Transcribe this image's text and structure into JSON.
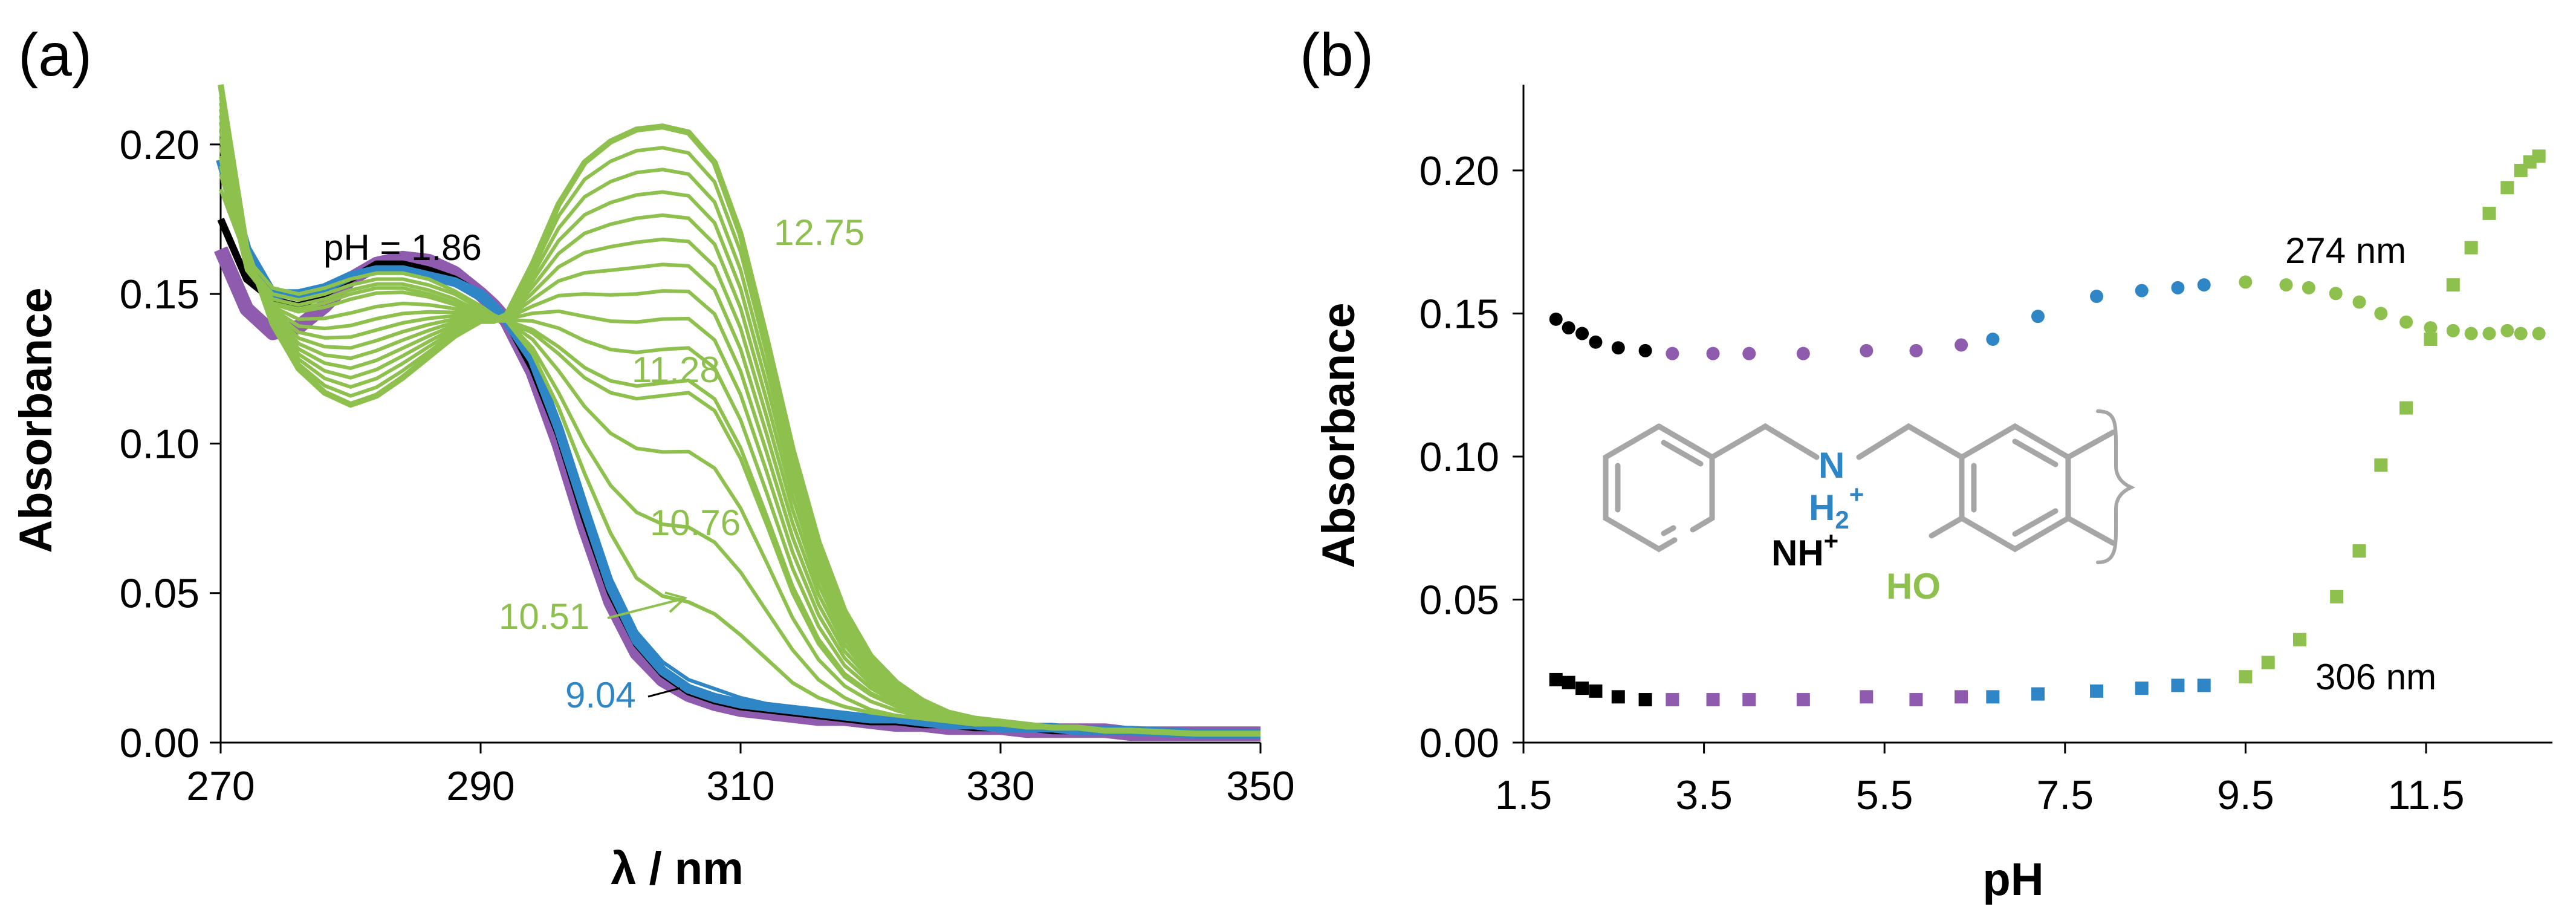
{
  "colors": {
    "black": "#000000",
    "purple": "#8E5BAE",
    "blue": "#2F86C6",
    "green": "#8DC04C",
    "gray": "#A6A6A6"
  },
  "chart_data": [
    {
      "type": "line",
      "panel_label": "(a)",
      "xlabel": "λ / nm",
      "ylabel": "Absorbance",
      "xlim": [
        270,
        350
      ],
      "ylim": [
        0.0,
        0.22
      ],
      "xticks": [
        "270",
        "290",
        "310",
        "330",
        "350"
      ],
      "yticks": [
        "0.00",
        "0.05",
        "0.10",
        "0.15",
        "0.20"
      ],
      "annotations": [
        {
          "text": "pH = 1.86",
          "color": "black"
        },
        {
          "text": "12.75",
          "color": "green"
        },
        {
          "text": "11.28",
          "color": "green"
        },
        {
          "text": "10.76",
          "color": "green"
        },
        {
          "text": "10.51",
          "color": "green"
        },
        {
          "text": "9.04",
          "color": "blue"
        }
      ],
      "template_x": [
        270,
        272,
        274,
        276,
        278,
        280,
        282,
        284,
        286,
        288,
        290,
        291,
        292,
        294,
        296,
        298,
        300,
        302,
        304,
        306,
        308,
        310,
        312,
        314,
        316,
        318,
        320,
        322,
        324,
        326,
        328,
        330,
        332,
        334,
        336,
        338,
        340,
        345,
        350
      ],
      "series": [
        {
          "name": "black group",
          "color": "black",
          "values": [
            0.175,
            0.155,
            0.148,
            0.146,
            0.15,
            0.155,
            0.16,
            0.16,
            0.158,
            0.155,
            0.15,
            0.146,
            0.141,
            0.125,
            0.103,
            0.075,
            0.05,
            0.033,
            0.023,
            0.017,
            0.014,
            0.012,
            0.011,
            0.01,
            0.009,
            0.008,
            0.007,
            0.007,
            0.006,
            0.006,
            0.005,
            0.005,
            0.005,
            0.004,
            0.004,
            0.004,
            0.004,
            0.003,
            0.003
          ]
        },
        {
          "name": "purple group",
          "color": "purple",
          "values": [
            0.165,
            0.145,
            0.137,
            0.139,
            0.146,
            0.155,
            0.16,
            0.162,
            0.161,
            0.157,
            0.15,
            0.146,
            0.141,
            0.124,
            0.1,
            0.072,
            0.047,
            0.03,
            0.021,
            0.016,
            0.013,
            0.011,
            0.01,
            0.009,
            0.008,
            0.008,
            0.007,
            0.006,
            0.006,
            0.005,
            0.005,
            0.005,
            0.004,
            0.004,
            0.004,
            0.004,
            0.003,
            0.003,
            0.003
          ]
        },
        {
          "name": "blue group",
          "color": "blue",
          "values": [
            0.195,
            0.165,
            0.15,
            0.15,
            0.152,
            0.156,
            0.158,
            0.158,
            0.156,
            0.154,
            0.15,
            0.146,
            0.141,
            0.128,
            0.105,
            0.078,
            0.052,
            0.034,
            0.024,
            0.018,
            0.015,
            0.013,
            0.012,
            0.011,
            0.01,
            0.009,
            0.008,
            0.008,
            0.007,
            0.006,
            0.006,
            0.005,
            0.005,
            0.005,
            0.004,
            0.004,
            0.004,
            0.003,
            0.003
          ]
        },
        {
          "name": "pH 9.04",
          "color": "blue",
          "values": [
            0.185,
            0.162,
            0.152,
            0.15,
            0.153,
            0.156,
            0.158,
            0.158,
            0.156,
            0.153,
            0.148,
            0.144,
            0.141,
            0.128,
            0.106,
            0.08,
            0.055,
            0.037,
            0.027,
            0.021,
            0.018,
            0.015,
            0.013,
            0.012,
            0.011,
            0.01,
            0.009,
            0.008,
            0.007,
            0.007,
            0.006,
            0.006,
            0.005,
            0.005,
            0.005,
            0.004,
            0.004,
            0.003,
            0.003
          ]
        },
        {
          "name": "pH 10.51",
          "color": "green",
          "values": [
            0.185,
            0.162,
            0.152,
            0.15,
            0.152,
            0.155,
            0.157,
            0.157,
            0.155,
            0.151,
            0.146,
            0.143,
            0.141,
            0.13,
            0.112,
            0.09,
            0.07,
            0.055,
            0.049,
            0.047,
            0.043,
            0.036,
            0.028,
            0.02,
            0.015,
            0.012,
            0.01,
            0.009,
            0.008,
            0.007,
            0.006,
            0.006,
            0.005,
            0.005,
            0.005,
            0.004,
            0.004,
            0.003,
            0.003
          ]
        },
        {
          "name": "pH 10.76",
          "color": "green",
          "values": [
            0.19,
            0.16,
            0.15,
            0.148,
            0.15,
            0.153,
            0.155,
            0.155,
            0.153,
            0.15,
            0.145,
            0.142,
            0.141,
            0.132,
            0.117,
            0.1,
            0.086,
            0.077,
            0.073,
            0.072,
            0.067,
            0.057,
            0.044,
            0.031,
            0.021,
            0.015,
            0.011,
            0.009,
            0.008,
            0.007,
            0.006,
            0.006,
            0.005,
            0.005,
            0.005,
            0.004,
            0.004,
            0.003,
            0.003
          ]
        },
        {
          "name": "pH 11.28",
          "color": "green",
          "values": [
            0.195,
            0.158,
            0.147,
            0.145,
            0.147,
            0.15,
            0.152,
            0.152,
            0.15,
            0.147,
            0.143,
            0.141,
            0.141,
            0.137,
            0.13,
            0.122,
            0.117,
            0.115,
            0.116,
            0.117,
            0.111,
            0.095,
            0.073,
            0.05,
            0.033,
            0.022,
            0.016,
            0.012,
            0.009,
            0.008,
            0.007,
            0.006,
            0.006,
            0.005,
            0.005,
            0.004,
            0.004,
            0.003,
            0.003
          ]
        },
        {
          "name": "pH 12.75",
          "color": "green",
          "values": [
            0.22,
            0.165,
            0.14,
            0.125,
            0.117,
            0.113,
            0.116,
            0.122,
            0.129,
            0.136,
            0.141,
            0.141,
            0.143,
            0.16,
            0.18,
            0.194,
            0.201,
            0.205,
            0.206,
            0.204,
            0.194,
            0.17,
            0.135,
            0.098,
            0.067,
            0.044,
            0.029,
            0.02,
            0.014,
            0.01,
            0.008,
            0.007,
            0.006,
            0.005,
            0.005,
            0.004,
            0.004,
            0.003,
            0.003
          ]
        }
      ],
      "green_interpolation_steps": 13
    },
    {
      "type": "scatter",
      "panel_label": "(b)",
      "xlabel": "pH",
      "ylabel": "Absorbance",
      "xlim": [
        1.5,
        12.9
      ],
      "ylim": [
        0.0,
        0.23
      ],
      "xticks": [
        "1.5",
        "3.5",
        "5.5",
        "7.5",
        "9.5",
        "11.5"
      ],
      "yticks": [
        "0.00",
        "0.05",
        "0.10",
        "0.15",
        "0.20"
      ],
      "annotations": [
        {
          "text": "274 nm",
          "color": "black"
        },
        {
          "text": "306 nm",
          "color": "black"
        }
      ],
      "series": [
        {
          "name": "274 nm",
          "marker": "circle",
          "points": [
            {
              "x": 1.86,
              "y": 0.148,
              "c": "black"
            },
            {
              "x": 2.0,
              "y": 0.145,
              "c": "black"
            },
            {
              "x": 2.15,
              "y": 0.143,
              "c": "black"
            },
            {
              "x": 2.3,
              "y": 0.14,
              "c": "black"
            },
            {
              "x": 2.55,
              "y": 0.138,
              "c": "black"
            },
            {
              "x": 2.85,
              "y": 0.137,
              "c": "black"
            },
            {
              "x": 3.15,
              "y": 0.136,
              "c": "purple"
            },
            {
              "x": 3.6,
              "y": 0.136,
              "c": "purple"
            },
            {
              "x": 4.0,
              "y": 0.136,
              "c": "purple"
            },
            {
              "x": 4.6,
              "y": 0.136,
              "c": "purple"
            },
            {
              "x": 5.3,
              "y": 0.137,
              "c": "purple"
            },
            {
              "x": 5.85,
              "y": 0.137,
              "c": "purple"
            },
            {
              "x": 6.35,
              "y": 0.139,
              "c": "purple"
            },
            {
              "x": 6.7,
              "y": 0.141,
              "c": "blue"
            },
            {
              "x": 7.2,
              "y": 0.149,
              "c": "blue"
            },
            {
              "x": 7.85,
              "y": 0.156,
              "c": "blue"
            },
            {
              "x": 8.35,
              "y": 0.158,
              "c": "blue"
            },
            {
              "x": 8.75,
              "y": 0.159,
              "c": "blue"
            },
            {
              "x": 9.04,
              "y": 0.16,
              "c": "blue"
            },
            {
              "x": 9.5,
              "y": 0.161,
              "c": "green"
            },
            {
              "x": 9.95,
              "y": 0.16,
              "c": "green"
            },
            {
              "x": 10.2,
              "y": 0.159,
              "c": "green"
            },
            {
              "x": 10.5,
              "y": 0.157,
              "c": "green"
            },
            {
              "x": 10.76,
              "y": 0.154,
              "c": "green"
            },
            {
              "x": 11.0,
              "y": 0.15,
              "c": "green"
            },
            {
              "x": 11.28,
              "y": 0.147,
              "c": "green"
            },
            {
              "x": 11.55,
              "y": 0.145,
              "c": "green"
            },
            {
              "x": 11.8,
              "y": 0.144,
              "c": "green"
            },
            {
              "x": 12.0,
              "y": 0.143,
              "c": "green"
            },
            {
              "x": 12.2,
              "y": 0.143,
              "c": "green"
            },
            {
              "x": 12.4,
              "y": 0.144,
              "c": "green"
            },
            {
              "x": 12.55,
              "y": 0.143,
              "c": "green"
            },
            {
              "x": 12.75,
              "y": 0.143,
              "c": "green"
            }
          ]
        },
        {
          "name": "306 nm",
          "marker": "square",
          "points": [
            {
              "x": 1.86,
              "y": 0.022,
              "c": "black"
            },
            {
              "x": 2.0,
              "y": 0.021,
              "c": "black"
            },
            {
              "x": 2.15,
              "y": 0.019,
              "c": "black"
            },
            {
              "x": 2.3,
              "y": 0.018,
              "c": "black"
            },
            {
              "x": 2.55,
              "y": 0.016,
              "c": "black"
            },
            {
              "x": 2.85,
              "y": 0.015,
              "c": "black"
            },
            {
              "x": 3.15,
              "y": 0.015,
              "c": "purple"
            },
            {
              "x": 3.6,
              "y": 0.015,
              "c": "purple"
            },
            {
              "x": 4.0,
              "y": 0.015,
              "c": "purple"
            },
            {
              "x": 4.6,
              "y": 0.015,
              "c": "purple"
            },
            {
              "x": 5.3,
              "y": 0.016,
              "c": "purple"
            },
            {
              "x": 5.85,
              "y": 0.015,
              "c": "purple"
            },
            {
              "x": 6.35,
              "y": 0.016,
              "c": "purple"
            },
            {
              "x": 6.7,
              "y": 0.016,
              "c": "blue"
            },
            {
              "x": 7.2,
              "y": 0.017,
              "c": "blue"
            },
            {
              "x": 7.85,
              "y": 0.018,
              "c": "blue"
            },
            {
              "x": 8.35,
              "y": 0.019,
              "c": "blue"
            },
            {
              "x": 8.75,
              "y": 0.02,
              "c": "blue"
            },
            {
              "x": 9.04,
              "y": 0.02,
              "c": "blue"
            },
            {
              "x": 9.5,
              "y": 0.023,
              "c": "green"
            },
            {
              "x": 9.75,
              "y": 0.028,
              "c": "green"
            },
            {
              "x": 10.1,
              "y": 0.036,
              "c": "green"
            },
            {
              "x": 10.51,
              "y": 0.051,
              "c": "green"
            },
            {
              "x": 10.76,
              "y": 0.067,
              "c": "green"
            },
            {
              "x": 11.0,
              "y": 0.097,
              "c": "green"
            },
            {
              "x": 11.28,
              "y": 0.117,
              "c": "green"
            },
            {
              "x": 11.55,
              "y": 0.141,
              "c": "green"
            },
            {
              "x": 11.8,
              "y": 0.16,
              "c": "green"
            },
            {
              "x": 12.0,
              "y": 0.173,
              "c": "green"
            },
            {
              "x": 12.2,
              "y": 0.185,
              "c": "green"
            },
            {
              "x": 12.4,
              "y": 0.194,
              "c": "green"
            },
            {
              "x": 12.55,
              "y": 0.2,
              "c": "green"
            },
            {
              "x": 12.65,
              "y": 0.203,
              "c": "green"
            },
            {
              "x": 12.75,
              "y": 0.205,
              "c": "green"
            }
          ]
        }
      ]
    }
  ],
  "structure": {
    "nh": "NH",
    "nh_sup": "+",
    "n": "N",
    "h2": "H",
    "h2_sub": "2",
    "h2_sup": "+",
    "ho": "HO"
  }
}
